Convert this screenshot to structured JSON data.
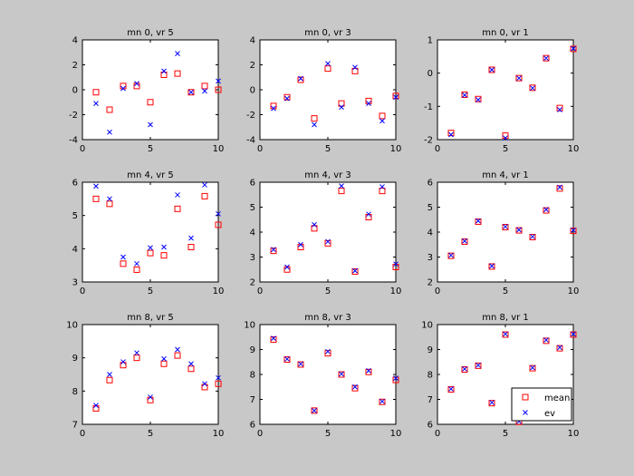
{
  "colors": {
    "background": "#c8c8c8",
    "axes_face": "#ffffff",
    "mean": "#ff0000",
    "ev": "#0000ff"
  },
  "chart_data": [
    {
      "type": "scatter",
      "title": "mn 0, vr  5",
      "xlim": [
        0,
        10
      ],
      "ylim": [
        -4,
        4
      ],
      "x_ticks": [
        0,
        5,
        10
      ],
      "y_ticks": [
        -4,
        -2,
        0,
        2,
        4
      ],
      "x": [
        1,
        2,
        3,
        4,
        5,
        6,
        7,
        8,
        9,
        10
      ],
      "series": [
        {
          "name": "mean",
          "marker": "square",
          "values": [
            -0.2,
            -1.6,
            0.3,
            0.3,
            -1.0,
            1.2,
            1.3,
            -0.2,
            0.3,
            0.0
          ]
        },
        {
          "name": "ev",
          "marker": "x",
          "values": [
            -1.1,
            -3.4,
            0.1,
            0.5,
            -2.8,
            1.5,
            2.9,
            -0.2,
            -0.1,
            0.7
          ]
        }
      ]
    },
    {
      "type": "scatter",
      "title": "mn 0, vr  3",
      "xlim": [
        0,
        10
      ],
      "ylim": [
        -4,
        4
      ],
      "x_ticks": [
        0,
        5,
        10
      ],
      "y_ticks": [
        -4,
        -2,
        0,
        2,
        4
      ],
      "x": [
        1,
        2,
        3,
        4,
        5,
        6,
        7,
        8,
        9,
        10
      ],
      "series": [
        {
          "name": "mean",
          "marker": "square",
          "values": [
            -1.3,
            -0.6,
            0.8,
            -2.3,
            1.7,
            -1.1,
            1.5,
            -0.9,
            -2.1,
            -0.5
          ]
        },
        {
          "name": "ev",
          "marker": "x",
          "values": [
            -1.5,
            -0.7,
            0.9,
            -2.8,
            2.1,
            -1.4,
            1.8,
            -1.1,
            -2.5,
            -0.6
          ]
        }
      ]
    },
    {
      "type": "scatter",
      "title": "mn 0, vr  1",
      "xlim": [
        0,
        10
      ],
      "ylim": [
        -2,
        1
      ],
      "x_ticks": [
        0,
        5,
        10
      ],
      "y_ticks": [
        -2,
        -1,
        0,
        1
      ],
      "x": [
        1,
        2,
        3,
        4,
        5,
        6,
        7,
        8,
        9,
        10
      ],
      "series": [
        {
          "name": "mean",
          "marker": "square",
          "values": [
            -1.8,
            -0.65,
            -0.78,
            0.1,
            -1.88,
            -0.15,
            -0.44,
            0.45,
            -1.05,
            0.73
          ]
        },
        {
          "name": "ev",
          "marker": "x",
          "values": [
            -1.85,
            -0.66,
            -0.8,
            0.1,
            -1.95,
            -0.15,
            -0.45,
            0.45,
            -1.1,
            0.74
          ]
        }
      ]
    },
    {
      "type": "scatter",
      "title": "mn 4, vr  5",
      "xlim": [
        0,
        10
      ],
      "ylim": [
        3,
        6
      ],
      "x_ticks": [
        0,
        5,
        10
      ],
      "y_ticks": [
        3,
        4,
        5,
        6
      ],
      "x": [
        1,
        2,
        3,
        4,
        5,
        6,
        7,
        8,
        9,
        10
      ],
      "series": [
        {
          "name": "mean",
          "marker": "square",
          "values": [
            5.5,
            5.35,
            3.55,
            3.37,
            3.87,
            3.8,
            5.2,
            4.05,
            5.58,
            4.72
          ]
        },
        {
          "name": "ev",
          "marker": "x",
          "values": [
            5.88,
            5.5,
            3.75,
            3.55,
            4.03,
            4.05,
            5.62,
            4.32,
            5.92,
            5.05
          ]
        }
      ]
    },
    {
      "type": "scatter",
      "title": "mn 4, vr  3",
      "xlim": [
        0,
        10
      ],
      "ylim": [
        2,
        6
      ],
      "x_ticks": [
        0,
        5,
        10
      ],
      "y_ticks": [
        2,
        3,
        4,
        5,
        6
      ],
      "x": [
        1,
        2,
        3,
        4,
        5,
        6,
        7,
        8,
        9,
        10
      ],
      "series": [
        {
          "name": "mean",
          "marker": "square",
          "values": [
            3.25,
            2.5,
            3.4,
            4.15,
            3.55,
            5.65,
            2.42,
            4.6,
            5.65,
            2.6
          ]
        },
        {
          "name": "ev",
          "marker": "x",
          "values": [
            3.3,
            2.6,
            3.5,
            4.3,
            3.62,
            5.85,
            2.45,
            4.72,
            5.82,
            2.72
          ]
        }
      ]
    },
    {
      "type": "scatter",
      "title": "mn 4, vr  1",
      "xlim": [
        0,
        10
      ],
      "ylim": [
        2,
        6
      ],
      "x_ticks": [
        0,
        5,
        10
      ],
      "y_ticks": [
        2,
        3,
        4,
        5,
        6
      ],
      "x": [
        1,
        2,
        3,
        4,
        5,
        6,
        7,
        8,
        9,
        10
      ],
      "series": [
        {
          "name": "mean",
          "marker": "square",
          "values": [
            3.05,
            3.62,
            4.42,
            2.62,
            4.2,
            4.07,
            3.8,
            4.87,
            5.75,
            4.05
          ]
        },
        {
          "name": "ev",
          "marker": "x",
          "values": [
            3.07,
            3.64,
            4.45,
            2.64,
            4.22,
            4.09,
            3.82,
            4.9,
            5.8,
            4.08
          ]
        }
      ]
    },
    {
      "type": "scatter",
      "title": "mn 8, vr  5",
      "xlim": [
        0,
        10
      ],
      "ylim": [
        7,
        10
      ],
      "x_ticks": [
        0,
        5,
        10
      ],
      "y_ticks": [
        7,
        8,
        9,
        10
      ],
      "x": [
        1,
        2,
        3,
        4,
        5,
        6,
        7,
        8,
        9,
        10
      ],
      "series": [
        {
          "name": "mean",
          "marker": "square",
          "values": [
            7.48,
            8.33,
            8.78,
            9.0,
            7.73,
            8.82,
            9.07,
            8.67,
            8.12,
            8.22
          ]
        },
        {
          "name": "ev",
          "marker": "x",
          "values": [
            7.57,
            8.5,
            8.88,
            9.15,
            7.82,
            8.97,
            9.25,
            8.82,
            8.22,
            8.4
          ]
        }
      ]
    },
    {
      "type": "scatter",
      "title": "mn 8, vr  3",
      "xlim": [
        0,
        10
      ],
      "ylim": [
        6,
        10
      ],
      "x_ticks": [
        0,
        5,
        10
      ],
      "y_ticks": [
        6,
        7,
        8,
        9,
        10
      ],
      "x": [
        1,
        2,
        3,
        4,
        5,
        6,
        7,
        8,
        9,
        10
      ],
      "series": [
        {
          "name": "mean",
          "marker": "square",
          "values": [
            9.4,
            8.6,
            8.4,
            6.55,
            8.85,
            8.0,
            7.45,
            8.1,
            6.9,
            7.78
          ]
        },
        {
          "name": "ev",
          "marker": "x",
          "values": [
            9.45,
            8.62,
            8.42,
            6.55,
            8.92,
            8.02,
            7.5,
            8.15,
            6.92,
            7.85
          ]
        }
      ]
    },
    {
      "type": "scatter",
      "title": "mn 8, vr  1",
      "xlim": [
        0,
        10
      ],
      "ylim": [
        6,
        10
      ],
      "x_ticks": [
        0,
        5,
        10
      ],
      "y_ticks": [
        6,
        7,
        8,
        9,
        10
      ],
      "x": [
        1,
        2,
        3,
        4,
        5,
        6,
        7,
        8,
        9,
        10
      ],
      "series": [
        {
          "name": "mean",
          "marker": "square",
          "values": [
            7.4,
            8.2,
            8.35,
            6.85,
            9.6,
            6.1,
            8.25,
            9.35,
            9.05,
            9.6
          ]
        },
        {
          "name": "ev",
          "marker": "x",
          "values": [
            7.42,
            8.22,
            8.37,
            6.87,
            9.62,
            6.12,
            8.27,
            9.38,
            9.08,
            9.62
          ]
        }
      ],
      "legend": {
        "placement": "bottom-right",
        "entries": [
          "mean",
          "ev"
        ]
      }
    }
  ]
}
